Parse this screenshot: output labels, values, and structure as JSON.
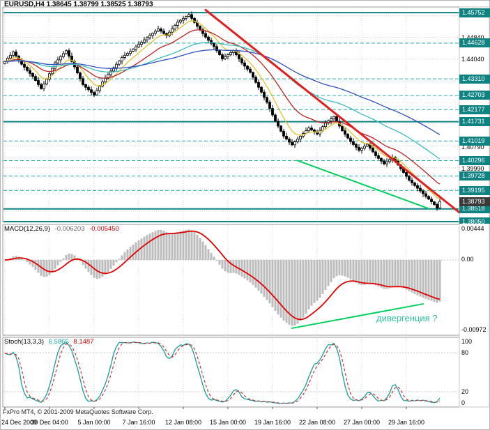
{
  "window": {
    "symbol_period": "EURUSD,H4",
    "open": "1.38645",
    "high": "1.38799",
    "low": "1.38525",
    "close": "1.38793"
  },
  "macd": {
    "name": "MACD(12,26,9)",
    "value_main": "-0.006203",
    "value_signal": "-0.005450",
    "scale_top": "0.00444",
    "scale_zero": "0.00",
    "scale_bottom": "-0.00972",
    "divergence_text": "дивергенция ?"
  },
  "stoch": {
    "name": "Stoch(13,3,3)",
    "value_main": "6.5865",
    "value_signal": "8.1487",
    "scale_labels": [
      {
        "v": 100,
        "label": "100"
      },
      {
        "v": 80,
        "label": "80"
      },
      {
        "v": 20,
        "label": "20"
      },
      {
        "v": 0,
        "label": "0"
      }
    ]
  },
  "footer": {
    "copyright": "FxPro MT4, © 2001-2009 MetaQuotes Software Corp."
  },
  "colors": {
    "badge_bg": "#0f8282",
    "current_badge_bg": "#3a3a3a",
    "level_solid": "#0f8282",
    "level_dashed": "#27aaaa",
    "grid": "#d4d4d4",
    "candle_up_fill": "#ffffff",
    "candle_down_fill": "#000000",
    "macd_hist": "#bcbcbc",
    "macd_signal": "#e00000",
    "stoch_main": "#189c9c",
    "stoch_signal": "#cc2222",
    "divergence_text": "#2cc2a0"
  },
  "chart_data": {
    "type": "candlestick",
    "symbol": "EURUSD",
    "timeframe": "H4",
    "price_range": {
      "top": 1.4596,
      "bottom": 1.3805
    },
    "x_labels": [
      {
        "label": "24 Dec 2009",
        "idx": 0
      },
      {
        "label": "30 Dec 04:00",
        "idx": 16
      },
      {
        "label": "5 Jan 00:00",
        "idx": 32
      },
      {
        "label": "7 Jan 16:00",
        "idx": 48
      },
      {
        "label": "12 Jan 08:00",
        "idx": 64
      },
      {
        "label": "15 Jan 00:00",
        "idx": 80
      },
      {
        "label": "19 Jan 16:00",
        "idx": 96
      },
      {
        "label": "22 Jan 08:00",
        "idx": 112
      },
      {
        "label": "27 Jan 00:00",
        "idx": 128
      },
      {
        "label": "29 Jan 16:00",
        "idx": 144
      }
    ],
    "closes": [
      1.4395,
      1.4407,
      1.4418,
      1.443,
      1.4415,
      1.44,
      1.4385,
      1.4374,
      1.4362,
      1.4351,
      1.434,
      1.4325,
      1.431,
      1.4295,
      1.4312,
      1.433,
      1.435,
      1.437,
      1.439,
      1.4401,
      1.4413,
      1.4424,
      1.4435,
      1.4415,
      1.4395,
      1.4375,
      1.4353,
      1.4332,
      1.431,
      1.43,
      1.4291,
      1.4281,
      1.4272,
      1.4288,
      1.4304,
      1.432,
      1.4333,
      1.4347,
      1.436,
      1.4372,
      1.4385,
      1.4397,
      1.441,
      1.4418,
      1.4425,
      1.4433,
      1.444,
      1.4449,
      1.4458,
      1.4466,
      1.4475,
      1.4483,
      1.4491,
      1.4499,
      1.4507,
      1.4515,
      1.4507,
      1.4498,
      1.449,
      1.4503,
      1.4515,
      1.4528,
      1.454,
      1.4547,
      1.4554,
      1.4561,
      1.4568,
      1.4554,
      1.4539,
      1.4525,
      1.4512,
      1.4498,
      1.4485,
      1.4473,
      1.4462,
      1.445,
      1.4435,
      1.442,
      1.4405,
      1.4413,
      1.442,
      1.4428,
      1.4435,
      1.442,
      1.4405,
      1.439,
      1.4378,
      1.4367,
      1.4355,
      1.4337,
      1.4318,
      1.43,
      1.4282,
      1.4263,
      1.4245,
      1.4222,
      1.4198,
      1.4175,
      1.4157,
      1.4138,
      1.412,
      1.4109,
      1.4098,
      1.4088,
      1.4099,
      1.4109,
      1.412,
      1.413,
      1.414,
      1.415,
      1.4143,
      1.4135,
      1.4128,
      1.4141,
      1.4155,
      1.4168,
      1.4176,
      1.4184,
      1.4192,
      1.4175,
      1.4157,
      1.414,
      1.4127,
      1.4113,
      1.41,
      1.4089,
      1.4079,
      1.4068,
      1.4075,
      1.4083,
      1.409,
      1.4076,
      1.4062,
      1.4048,
      1.4038,
      1.4028,
      1.4018,
      1.4026,
      1.4034,
      1.4042,
      1.4028,
      1.4014,
      1.4,
      1.3986,
      1.3972,
      1.3958,
      1.3948,
      1.3938,
      1.3928,
      1.3918,
      1.3908,
      1.3898,
      1.3888,
      1.3878,
      1.3868,
      1.3855,
      1.38793
    ],
    "levels": [
      {
        "value": 1.45752,
        "label": "1.45752",
        "style": "solid"
      },
      {
        "value": 1.44628,
        "label": "1.44628",
        "style": "dashed"
      },
      {
        "value": 1.4331,
        "label": "1.43310",
        "style": "dashed"
      },
      {
        "value": 1.42703,
        "label": "1.42703",
        "style": "dashed"
      },
      {
        "value": 1.42177,
        "label": "1.42177",
        "style": "dashed"
      },
      {
        "value": 1.41731,
        "label": "1.41731",
        "style": "solid"
      },
      {
        "value": 1.41019,
        "label": "1.41019",
        "style": "dashed"
      },
      {
        "value": 1.40296,
        "label": "1.40296",
        "style": "dashed"
      },
      {
        "value": 1.39728,
        "label": "1.39728",
        "style": "dashed"
      },
      {
        "value": 1.39195,
        "label": "1.39195",
        "style": "dashed"
      },
      {
        "value": 1.38518,
        "label": "1.38518",
        "style": "solid"
      },
      {
        "value": 1.3805,
        "label": "1.38050",
        "style": "solid"
      }
    ],
    "axis_ticks": [
      {
        "value": 1.4484,
        "label": "1.44840"
      },
      {
        "value": 1.4404,
        "label": "1.44040"
      },
      {
        "value": 1.4079,
        "label": "1.40790"
      },
      {
        "value": 1.3999,
        "label": "1.39990"
      }
    ],
    "current_price": {
      "value": 1.38793,
      "label": "1.38793"
    },
    "moving_averages": [
      {
        "period": 8,
        "color": "#e2c22e"
      },
      {
        "period": 21,
        "color": "#bb2222"
      },
      {
        "period": 50,
        "color": "#38bdbd"
      },
      {
        "period": 90,
        "color": "#2f4fc0"
      }
    ],
    "indicators": {
      "macd": {
        "fast": 12,
        "slow": 26,
        "signal": 9
      },
      "stoch": {
        "k": 13,
        "slowing": 3,
        "d": 3
      }
    },
    "trendlines": [
      {
        "name": "downtrend-resistance",
        "color": "#e01f1f",
        "width": 3,
        "x1_idx": 72,
        "y1": 1.4585,
        "x2_idx": 163,
        "y2": 1.3839
      },
      {
        "name": "support-green",
        "color": "#00cf5d",
        "width": 2,
        "x1_idx": 105,
        "y1": 1.403,
        "x2_idx": 152,
        "y2": 1.3853
      }
    ],
    "macd_divergence": {
      "to_idx": 150
    }
  }
}
